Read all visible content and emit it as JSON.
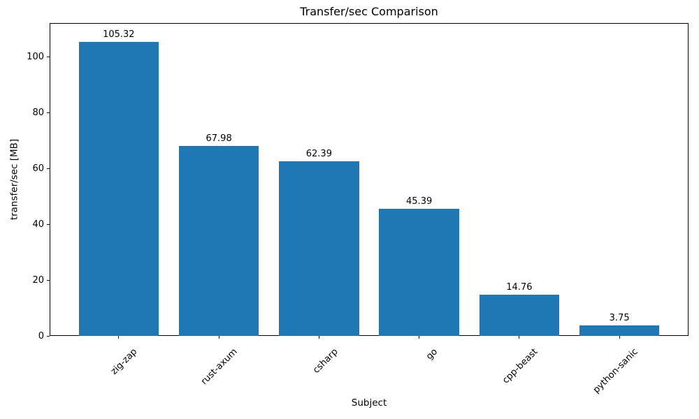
{
  "chart_data": {
    "type": "bar",
    "title": "Transfer/sec Comparison",
    "xlabel": "Subject",
    "ylabel": "transfer/sec [MB]",
    "categories": [
      "zig-zap",
      "rust-axum",
      "csharp",
      "go",
      "cpp-beast",
      "python-sanic"
    ],
    "values": [
      105.32,
      67.98,
      62.39,
      45.39,
      14.76,
      3.75
    ],
    "value_labels": [
      "105.32",
      "67.98",
      "62.39",
      "45.39",
      "14.76",
      "3.75"
    ],
    "ylim": [
      0,
      112
    ],
    "yticks": [
      0,
      20,
      40,
      60,
      80,
      100
    ],
    "bar_color": "#1f77b4",
    "axis_color": "#000000",
    "grid": false,
    "legend_position": "none",
    "x_tick_rotation_deg": 45
  }
}
